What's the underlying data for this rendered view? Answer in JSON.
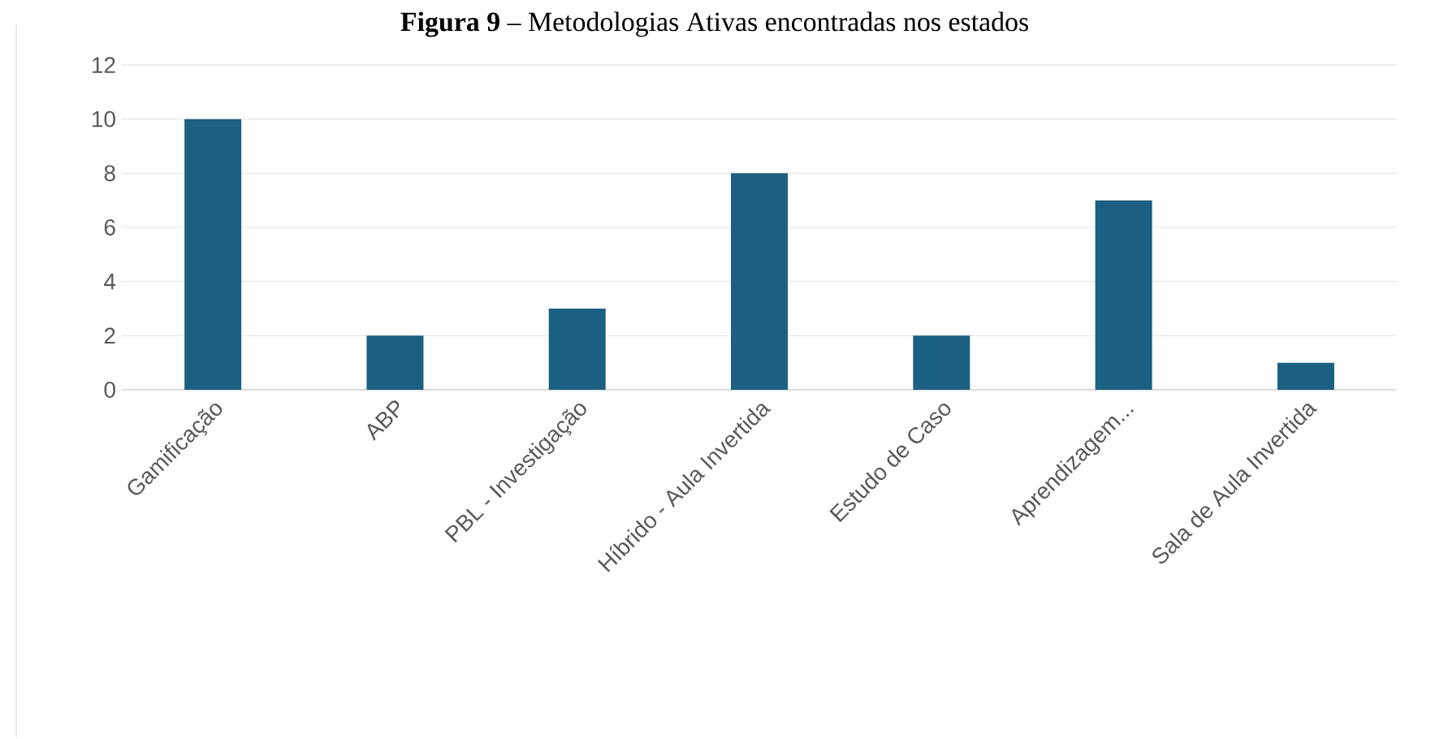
{
  "chart_data": {
    "type": "bar",
    "title": "**Figura 9** – Metodologias Ativas encontradas nos estados",
    "categories": [
      "Gamificação",
      "ABP",
      "PBL - Investigação",
      "Híbrido - Aula Invertida",
      "Estudo de Caso",
      "Aprendizagem...",
      "Sala de Aula Invertida"
    ],
    "values": [
      10,
      2,
      3,
      8,
      2,
      7,
      1
    ],
    "color": "#1b6082",
    "ylim": [
      0,
      12
    ],
    "yticks": [
      0,
      2,
      4,
      6,
      8,
      10,
      12
    ],
    "grid": "y"
  }
}
